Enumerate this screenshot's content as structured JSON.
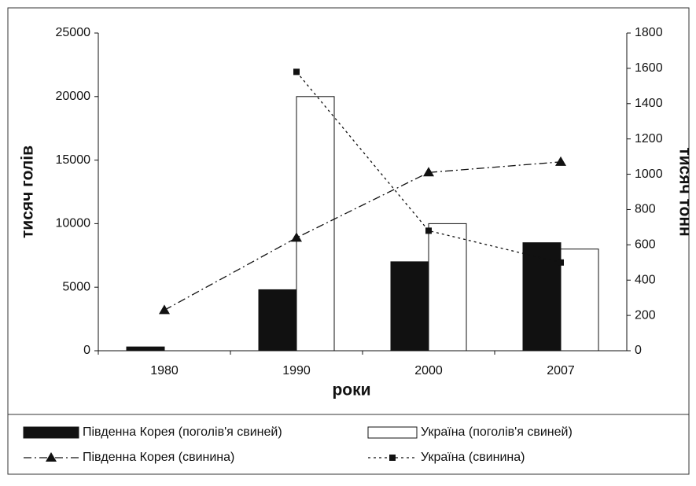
{
  "chart_data": {
    "type": "bar",
    "categories": [
      "1980",
      "1990",
      "2000",
      "2007"
    ],
    "xlabel": "роки",
    "ylabel": "тисяч голів",
    "y2label": "тисяч тонн",
    "ylim": [
      0,
      25000
    ],
    "yticks": [
      0,
      5000,
      10000,
      15000,
      20000,
      25000
    ],
    "y2lim": [
      0,
      1800
    ],
    "y2ticks": [
      0,
      200,
      400,
      600,
      800,
      1000,
      1200,
      1400,
      1600,
      1800
    ],
    "legend": "bottom",
    "series": [
      {
        "name": "Південна Корея (поголів'я свиней)",
        "type": "bar",
        "color": "#111111",
        "values": [
          300,
          4800,
          7000,
          8500
        ]
      },
      {
        "name": "Україна (поголів'я свиней)",
        "type": "bar",
        "color": "#ffffff",
        "values": [
          null,
          20000,
          10000,
          8000
        ]
      },
      {
        "name": "Південна Корея (свинина)",
        "type": "line",
        "axis": "y2",
        "marker": "triangle",
        "dash": "dash-dot",
        "color": "#111111",
        "values": [
          230,
          640,
          1010,
          1070
        ]
      },
      {
        "name": "Україна (свинина)",
        "type": "line",
        "axis": "y2",
        "marker": "square",
        "dash": "dotted",
        "color": "#111111",
        "values": [
          null,
          1580,
          680,
          500
        ]
      }
    ]
  }
}
